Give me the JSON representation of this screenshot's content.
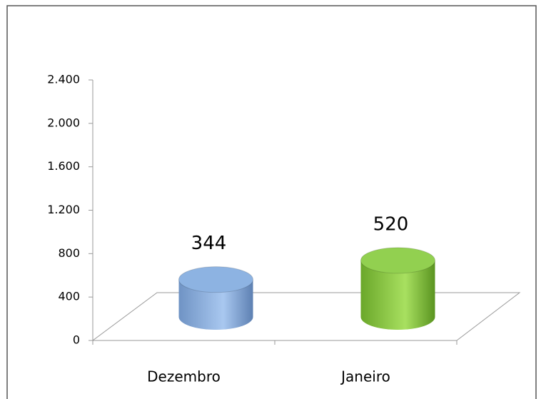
{
  "chart_data": {
    "type": "cylinder",
    "categories": [
      "Dezembro",
      "Janeiro"
    ],
    "values": [
      344,
      520
    ],
    "colors": [
      "#8db3e2",
      "#92d050"
    ],
    "ylim": [
      0,
      2400
    ],
    "yticks": [
      0,
      400,
      800,
      {
        "value": 1200,
        "label": "1.200"
      },
      {
        "value": 1600,
        "label": "1.600"
      },
      {
        "value": 2000,
        "label": "2.000"
      },
      {
        "value": 2400,
        "label": "2.400"
      }
    ],
    "grid": false
  }
}
